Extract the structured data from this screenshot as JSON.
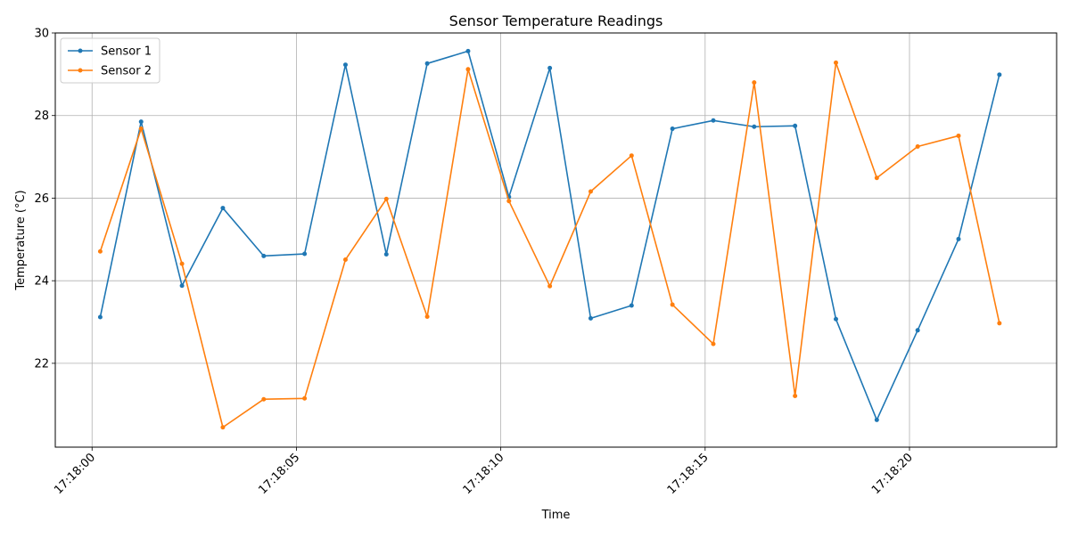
{
  "chart_data": {
    "type": "line",
    "title": "Sensor Temperature Readings",
    "xlabel": "Time",
    "ylabel": "Temperature (°C)",
    "grid": true,
    "legend_position": "top-left",
    "x_axis_type": "time",
    "x_ticks": [
      "17:18:00",
      "17:18:05",
      "17:18:10",
      "17:18:15",
      "17:18:20"
    ],
    "y_ticks": [
      22,
      24,
      26,
      28,
      30
    ],
    "xlim": [
      "17:17:59.1",
      "17:18:23.6"
    ],
    "ylim": [
      19.97,
      30.0
    ],
    "x": [
      "17:18:00.2",
      "17:18:01.2",
      "17:18:02.2",
      "17:18:03.2",
      "17:18:04.2",
      "17:18:05.2",
      "17:18:06.2",
      "17:18:07.2",
      "17:18:08.2",
      "17:18:09.2",
      "17:18:10.2",
      "17:18:11.2",
      "17:18:12.2",
      "17:18:13.2",
      "17:18:14.2",
      "17:18:15.2",
      "17:18:16.2",
      "17:18:17.2",
      "17:18:18.2",
      "17:18:19.2",
      "17:18:20.2",
      "17:18:21.2",
      "17:18:22.2"
    ],
    "series": [
      {
        "name": "Sensor 1",
        "color": "#1f77b4",
        "values": [
          23.12,
          27.85,
          23.88,
          25.76,
          24.6,
          24.65,
          29.23,
          24.64,
          29.26,
          29.56,
          26.03,
          29.15,
          23.09,
          23.4,
          27.68,
          27.88,
          27.73,
          27.75,
          23.07,
          20.63,
          22.8,
          25.01,
          28.99
        ]
      },
      {
        "name": "Sensor 2",
        "color": "#ff7f0e",
        "values": [
          24.71,
          27.68,
          24.41,
          20.45,
          21.13,
          21.15,
          24.51,
          25.98,
          23.13,
          29.12,
          25.93,
          23.87,
          26.16,
          27.03,
          23.42,
          22.47,
          28.8,
          21.21,
          29.28,
          26.49,
          27.25,
          27.51,
          22.97
        ]
      }
    ]
  }
}
